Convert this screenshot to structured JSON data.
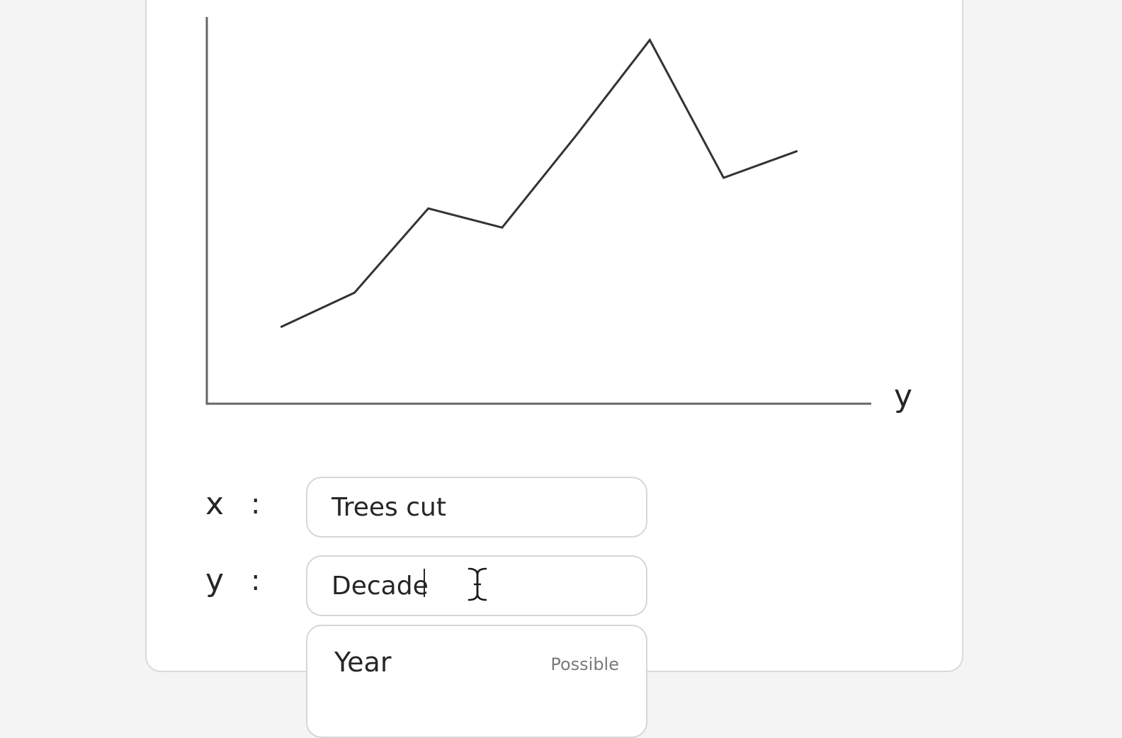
{
  "chart_data": {
    "type": "line",
    "x": [
      1,
      2,
      3,
      4,
      5,
      6,
      7,
      8
    ],
    "series": [
      {
        "values": [
          20,
          29,
          51,
          46,
          70,
          95,
          59,
          66
        ]
      }
    ],
    "xlabel": "",
    "ylabel": "y",
    "xlim": [
      0,
      9
    ],
    "ylim": [
      0,
      101
    ],
    "grid": false,
    "line_color": "#333333",
    "axis_color": "#666666"
  },
  "form": {
    "x_row": {
      "label": "x",
      "colon": ":",
      "value": "Trees cut"
    },
    "y_row": {
      "label": "y",
      "colon": ":",
      "value": "Decade"
    }
  },
  "dropdown": {
    "options": [
      {
        "label": "Year",
        "tag": "Possible"
      }
    ]
  }
}
